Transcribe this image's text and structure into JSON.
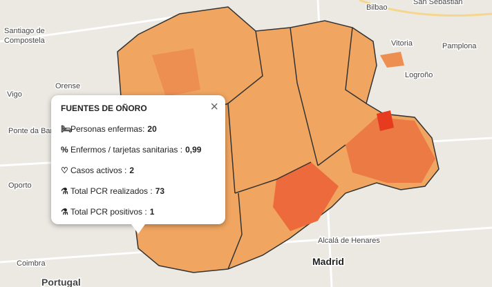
{
  "map_labels": {
    "bilbao": "Bilbao",
    "san_sebastian": "San Sebastián",
    "santiago_1": "Santiago de",
    "santiago_2": "Compostela",
    "vitoria": "Vitoria",
    "pamplona": "Pamplona",
    "logrono": "Logroño",
    "orense": "Orense",
    "vigo": "Vigo",
    "ponte": "Ponte da Bar",
    "oporto": "Oporto",
    "coimbra": "Coimbra",
    "portugal": "Portugal",
    "alcala": "Alcalá de Henares",
    "madrid": "Madrid"
  },
  "popup": {
    "title": "FUENTES DE OÑORO",
    "close": "×",
    "rows": [
      {
        "label": "Personas enfermas:",
        "value": "20"
      },
      {
        "label": "Enfermos / tarjetas sanitarias :",
        "value": "0,99"
      },
      {
        "label": "Casos activos :",
        "value": "2"
      },
      {
        "label": "Total PCR realizados :",
        "value": "73"
      },
      {
        "label": "Total PCR positivos :",
        "value": "1"
      }
    ]
  }
}
